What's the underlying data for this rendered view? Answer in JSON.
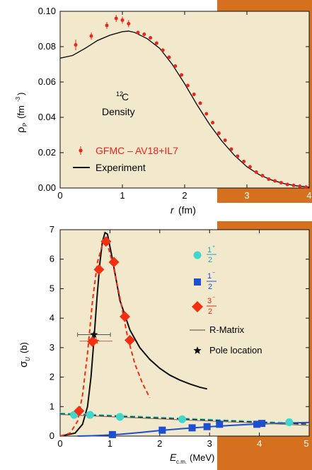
{
  "colors": {
    "panel_bg": "#f2e8cc",
    "accent": "#d4701e",
    "gfmc_red": "#e8281e",
    "cyan": "#3fd6cc",
    "blue": "#1d4fd0",
    "diamond_red": "#f2300f",
    "black": "#111111"
  },
  "chart_data": [
    {
      "type": "scatter",
      "title": "",
      "annotation": {
        "superscript": "12",
        "element": "C",
        "word": "Density"
      },
      "xlabel": {
        "var": "r",
        "unit": "(fm)"
      },
      "ylabel": {
        "main": "ρ",
        "sub": "P",
        "unit_pre": "(fm",
        "unit_sup": "-3",
        "unit_post": ")"
      },
      "xlim": [
        0,
        4
      ],
      "ylim": [
        0,
        0.1
      ],
      "xticks": [
        "0",
        "1",
        "2",
        "3",
        "4"
      ],
      "yticks": [
        "0.00",
        "0.02",
        "0.04",
        "0.06",
        "0.08",
        "0.10"
      ],
      "legend": {
        "position": "bottom-left",
        "entries": [
          {
            "label": "GFMC – AV18+IL7",
            "kind": "points"
          },
          {
            "label": "Experiment",
            "kind": "line"
          }
        ]
      },
      "series": [
        {
          "name": "GFMC – AV18+IL7",
          "kind": "points",
          "x": [
            0.25,
            0.5,
            0.75,
            0.9,
            1.0,
            1.1,
            1.25,
            1.35,
            1.45,
            1.55,
            1.65,
            1.75,
            1.85,
            1.95,
            2.05,
            2.15,
            2.25,
            2.35,
            2.45,
            2.55,
            2.65,
            2.75,
            2.85,
            2.95,
            3.05,
            3.15,
            3.25,
            3.35,
            3.45,
            3.55,
            3.65,
            3.75,
            3.85,
            3.95
          ],
          "y": [
            0.081,
            0.086,
            0.092,
            0.096,
            0.095,
            0.093,
            0.088,
            0.087,
            0.085,
            0.082,
            0.078,
            0.074,
            0.069,
            0.064,
            0.058,
            0.053,
            0.048,
            0.042,
            0.037,
            0.031,
            0.027,
            0.022,
            0.018,
            0.015,
            0.012,
            0.009,
            0.007,
            0.005,
            0.004,
            0.003,
            0.002,
            0.0015,
            0.001,
            0.0005
          ],
          "yerr": [
            0.003,
            0.002,
            0.002,
            0.002,
            0.002,
            0.002,
            0.001,
            0.001,
            0.001,
            0.001,
            0.001,
            0.001,
            0.001,
            0.001,
            0.001,
            0.001,
            0.001,
            0.001,
            0.001,
            0.001,
            0.001,
            0.001,
            0.001,
            0.001,
            0.001,
            0,
            0,
            0,
            0,
            0,
            0,
            0,
            0,
            0
          ]
        },
        {
          "name": "Experiment",
          "kind": "line",
          "x": [
            0,
            0.2,
            0.4,
            0.6,
            0.8,
            1.0,
            1.1,
            1.2,
            1.4,
            1.6,
            1.8,
            2.0,
            2.2,
            2.4,
            2.6,
            2.8,
            3.0,
            3.2,
            3.4,
            3.6,
            3.8,
            4.0
          ],
          "y": [
            0.0735,
            0.075,
            0.079,
            0.0835,
            0.0865,
            0.0885,
            0.0888,
            0.088,
            0.0845,
            0.079,
            0.07,
            0.059,
            0.047,
            0.036,
            0.0265,
            0.0185,
            0.012,
            0.0075,
            0.0045,
            0.0025,
            0.0012,
            0.0005
          ]
        }
      ]
    },
    {
      "type": "scatter",
      "title": "",
      "xlabel": {
        "var": "E",
        "sub": "c.m.",
        "unit": "(MeV)"
      },
      "ylabel": {
        "main": "σ",
        "sub": "U",
        "unit": "(b)"
      },
      "xlim": [
        0,
        5
      ],
      "ylim": [
        0,
        7
      ],
      "xticks": [
        "0",
        "1",
        "2",
        "3",
        "4",
        "5"
      ],
      "yticks": [
        "0",
        "1",
        "2",
        "3",
        "4",
        "5",
        "6",
        "7"
      ],
      "legend": {
        "position": "right",
        "entries": [
          {
            "label_num": "1",
            "label_sup": "+",
            "label_den": "2",
            "kind": "circle"
          },
          {
            "label_num": "1",
            "label_sup": "−",
            "label_den": "2",
            "kind": "square"
          },
          {
            "label_num": "3",
            "label_sup": "−",
            "label_den": "2",
            "kind": "diamond"
          },
          {
            "label": "R-Matrix",
            "kind": "line"
          },
          {
            "label": "Pole location",
            "kind": "star"
          }
        ]
      },
      "series": [
        {
          "name": "1+/2",
          "kind": "circle",
          "x": [
            0.28,
            0.6,
            1.2,
            2.45,
            4.6
          ],
          "y": [
            0.72,
            0.72,
            0.65,
            0.57,
            0.47
          ]
        },
        {
          "name": "1-/2",
          "kind": "square",
          "x": [
            1.05,
            2.05,
            2.65,
            2.95,
            3.2,
            3.95,
            4.05
          ],
          "y": [
            0.05,
            0.2,
            0.28,
            0.32,
            0.4,
            0.4,
            0.43
          ]
        },
        {
          "name": "3-/2",
          "kind": "diamond",
          "x": [
            0.38,
            0.65,
            0.78,
            0.92,
            1.08,
            1.3,
            1.4
          ],
          "y": [
            0.85,
            3.2,
            5.65,
            6.6,
            5.9,
            4.05,
            3.25
          ]
        },
        {
          "name": "black solid resonance",
          "kind": "line",
          "style": "solid",
          "x": [
            0,
            0.3,
            0.45,
            0.55,
            0.62,
            0.68,
            0.74,
            0.8,
            0.85,
            0.9,
            0.95,
            1.05,
            1.2,
            1.4,
            1.6,
            1.8,
            2.0,
            2.2,
            2.4,
            2.6,
            2.8,
            2.95
          ],
          "y": [
            0,
            0.1,
            0.4,
            1.0,
            2.0,
            3.3,
            4.7,
            5.9,
            6.6,
            6.9,
            6.85,
            6.0,
            4.6,
            3.6,
            3.0,
            2.6,
            2.3,
            2.07,
            1.9,
            1.77,
            1.66,
            1.6
          ]
        },
        {
          "name": "red dashed resonance",
          "kind": "line",
          "style": "dashed",
          "x": [
            0,
            0.2,
            0.35,
            0.45,
            0.55,
            0.65,
            0.75,
            0.85,
            0.95,
            1.05,
            1.2,
            1.35,
            1.5,
            1.65,
            1.8
          ],
          "y": [
            0,
            0.1,
            0.5,
            1.4,
            2.8,
            4.6,
            5.9,
            6.5,
            6.5,
            5.9,
            4.7,
            3.4,
            2.45,
            1.8,
            1.3
          ]
        },
        {
          "name": "cyan dashed",
          "kind": "line",
          "style": "dashed",
          "x": [
            0,
            5
          ],
          "y": [
            0.78,
            0.42
          ]
        },
        {
          "name": "black dashed",
          "kind": "line",
          "style": "dashed",
          "x": [
            0,
            5
          ],
          "y": [
            0.75,
            0.4
          ]
        },
        {
          "name": "blue curve",
          "kind": "line",
          "style": "solid",
          "x": [
            0.35,
            0.6,
            0.9,
            1.2,
            1.6,
            2.0,
            2.5,
            3.0,
            3.5,
            4.0,
            4.5,
            5.0
          ],
          "y": [
            0,
            0.01,
            0.03,
            0.06,
            0.12,
            0.19,
            0.26,
            0.32,
            0.37,
            0.41,
            0.44,
            0.46
          ]
        },
        {
          "name": "R-Matrix",
          "kind": "line",
          "style": "solid",
          "x": [
            0,
            5
          ],
          "y": [
            0.73,
            0.36
          ]
        }
      ],
      "pole": {
        "x": 0.68,
        "y": 3.44,
        "xerr": 0.33
      },
      "pole_red": {
        "x": 0.72,
        "y": 3.22,
        "xerr": 0.33
      }
    }
  ]
}
